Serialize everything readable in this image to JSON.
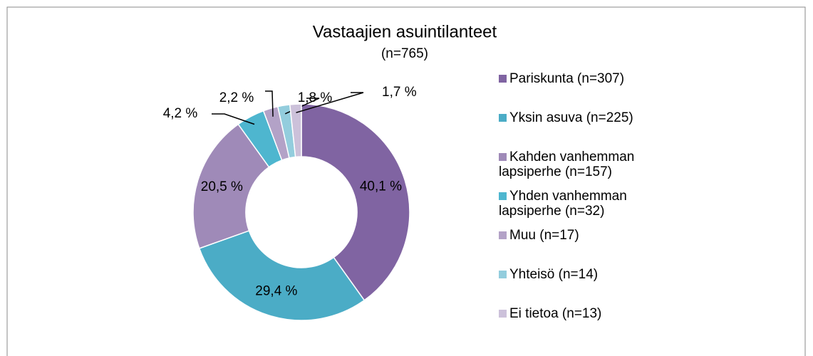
{
  "chart_data": {
    "type": "donut",
    "title": "Vastaajien asuintilanteet",
    "subtitle": "(n=765)",
    "categories": [
      "Pariskunta (n=307)",
      "Yksin asuva (n=225)",
      "Kahden vanhemman lapsiperhe (n=157)",
      "Yhden vanhemman lapsiperhe (n=32)",
      "Muu (n=17)",
      "Yhteisö (n=14)",
      "Ei tietoa (n=13)"
    ],
    "values": [
      40.1,
      29.4,
      20.5,
      4.2,
      2.2,
      1.8,
      1.7
    ],
    "value_labels": [
      "40,1 %",
      "29,4 %",
      "20,5 %",
      "4,2 %",
      "2,2 %",
      "1,8 %",
      "1,7 %"
    ],
    "colors": [
      "#8064a2",
      "#4bacc6",
      "#9f8ab8",
      "#4eb6cf",
      "#b3a2c7",
      "#93cddd",
      "#ccc1da"
    ],
    "legend": "right"
  }
}
